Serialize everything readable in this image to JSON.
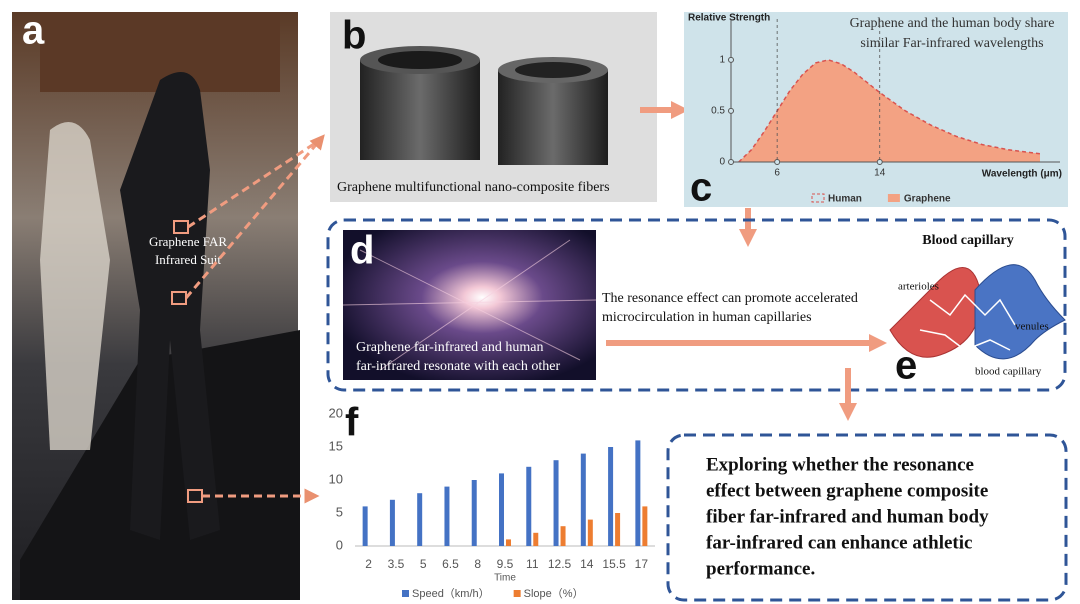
{
  "panels": {
    "a": {
      "label": "a",
      "annotation": [
        "Graphene FAR",
        "Infrared Suit"
      ]
    },
    "b": {
      "label": "b",
      "caption": "Graphene multifunctional nano-composite fibers"
    },
    "c": {
      "label": "c"
    },
    "d": {
      "label": "d",
      "caption": [
        "Graphene far-infrared and human",
        "far-infrared resonate with each other"
      ]
    },
    "e": {
      "label": "e",
      "title": "Blood capillary",
      "labels": [
        "arterioles",
        "venules",
        "blood capillary"
      ]
    },
    "f": {
      "label": "f"
    },
    "resonance_text": [
      "The resonance effect can promote accelerated",
      "microcirculation in human capillaries"
    ],
    "conclusion": [
      "Exploring whether the resonance",
      "effect between graphene composite",
      "fiber far-infrared and human body",
      "far-infrared can enhance athletic",
      "performance."
    ]
  },
  "chart_data": [
    {
      "type": "area",
      "annotation": [
        "Graphene and the human body share",
        "similar Far-infrared wavelengths"
      ],
      "y_label": "Relative Strength",
      "x_label": "Wavelength (μm)",
      "x": [
        3,
        4,
        5,
        6,
        7,
        8,
        9,
        10,
        11,
        12,
        14,
        16,
        18,
        20,
        22,
        24,
        26.5
      ],
      "series": [
        {
          "name": "Human",
          "color": "#d9534f",
          "style": "dashed",
          "values": [
            0,
            0.12,
            0.3,
            0.5,
            0.7,
            0.86,
            0.97,
            1.0,
            0.96,
            0.88,
            0.68,
            0.5,
            0.36,
            0.25,
            0.17,
            0.12,
            0.08
          ]
        },
        {
          "name": "Graphene",
          "color": "#f3a283",
          "style": "filled",
          "values": [
            0,
            0.12,
            0.3,
            0.5,
            0.7,
            0.86,
            0.97,
            1.0,
            0.96,
            0.88,
            0.68,
            0.5,
            0.36,
            0.25,
            0.17,
            0.12,
            0.08
          ]
        }
      ],
      "xlim": [
        2.4,
        26.5
      ],
      "ylim": [
        0,
        1.4
      ],
      "xticks": [
        6,
        14
      ],
      "yticks": [
        0,
        0.5,
        1
      ],
      "grid": true
    },
    {
      "type": "bar",
      "x_label": "Time",
      "categories": [
        "2",
        "3.5",
        "5",
        "6.5",
        "8",
        "9.5",
        "11",
        "12.5",
        "14",
        "15.5",
        "17"
      ],
      "series": [
        {
          "name": "Speed（km/h）",
          "color": "#4472c4",
          "values": [
            6,
            7,
            8,
            9,
            10,
            11,
            12,
            13,
            14,
            15,
            16
          ]
        },
        {
          "name": "Slope（%）",
          "color": "#ed7d31",
          "values": [
            0,
            0,
            0,
            0,
            0,
            1,
            2,
            3,
            4,
            5,
            6
          ]
        }
      ],
      "ylim": [
        0,
        20
      ],
      "yticks": [
        0,
        5,
        10,
        15,
        20
      ],
      "grid": false
    }
  ]
}
